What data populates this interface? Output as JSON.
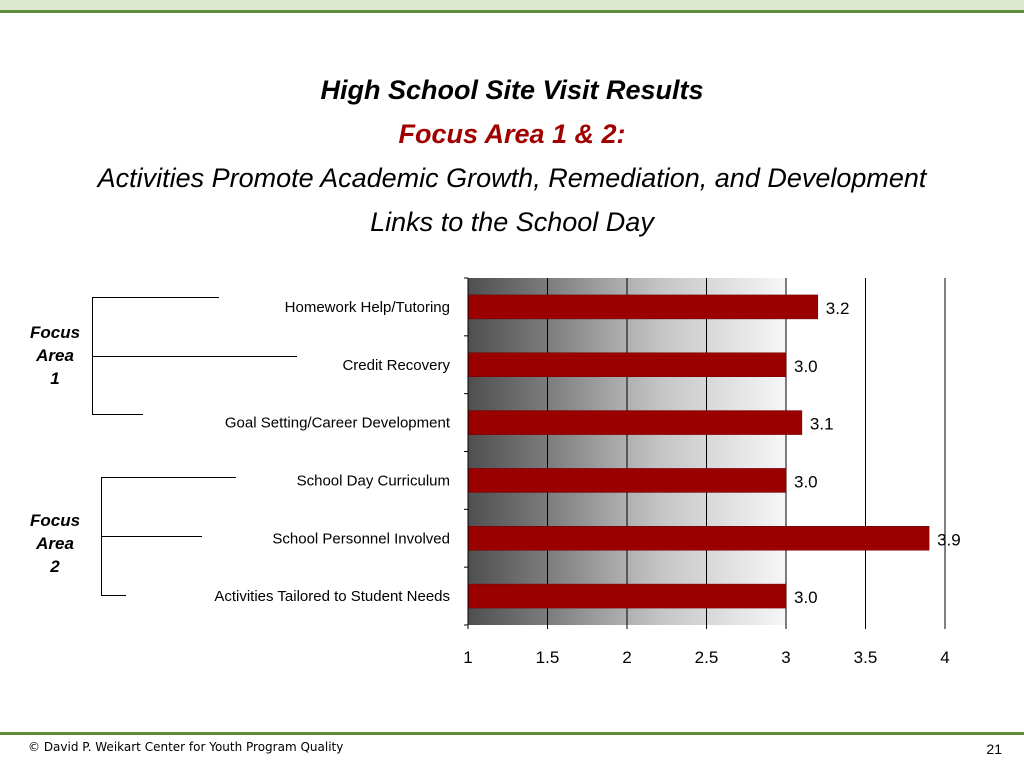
{
  "title": {
    "line1": "High School Site Visit Results",
    "line2": "Focus Area 1 & 2:",
    "line3": "Activities Promote Academic Growth, Remediation, and Development",
    "line4": "Links to the School Day"
  },
  "focus_areas": [
    {
      "label_line1": "Focus",
      "label_line2": "Area",
      "label_line3": "1"
    },
    {
      "label_line1": "Focus",
      "label_line2": "Area",
      "label_line3": "2"
    }
  ],
  "footer": {
    "copyright": "© David P. Weikart Center for Youth Program Quality",
    "page_number": "21"
  },
  "colors": {
    "bar": "#9b0000",
    "accent_title": "#a00000",
    "rule_green": "#5f8f3a"
  },
  "chart_data": {
    "type": "bar",
    "orientation": "horizontal",
    "categories": [
      "Homework Help/Tutoring",
      "Credit Recovery",
      "Goal Setting/Career Development",
      "School Day Curriculum",
      "School Personnel Involved",
      "Activities Tailored to Student Needs"
    ],
    "values": [
      3.2,
      3.0,
      3.1,
      3.0,
      3.9,
      3.0
    ],
    "data_labels": [
      "3.2",
      "3.0",
      "3.1",
      "3.0",
      "3.9",
      "3.0"
    ],
    "xlim": [
      1,
      4
    ],
    "xticks": [
      "1",
      "1.5",
      "2",
      "2.5",
      "3",
      "3.5",
      "4"
    ],
    "grid": true,
    "background": "gray gradient from 1 to 3"
  }
}
